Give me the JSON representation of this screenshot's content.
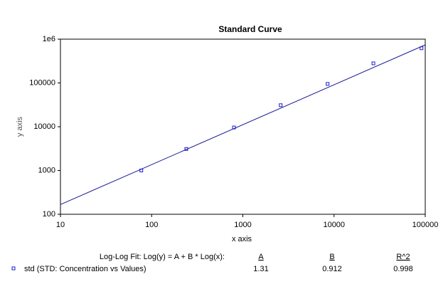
{
  "chart_data": {
    "type": "scatter",
    "title": "Standard Curve",
    "x_label": "x axis",
    "y_label": "y axis",
    "log_x": true,
    "log_y": true,
    "xlim": [
      10,
      100000
    ],
    "xticks": [
      10,
      100,
      1000,
      10000,
      100000
    ],
    "ylim": [
      100,
      1000000
    ],
    "yticks": [
      100,
      1000,
      10000,
      100000,
      {
        "value": 1000000,
        "label": "1e6"
      }
    ],
    "series": [
      {
        "name": "std (STD: Concentration vs Values)",
        "color": "#1a1acc",
        "x": [
          77,
          240,
          800,
          2600,
          8500,
          27000,
          91000
        ],
        "values": [
          1000,
          3100,
          9600,
          31000,
          95000,
          280000,
          620000
        ]
      }
    ],
    "fit": {
      "label": "Log-Log Fit: Log(y) = A + B * Log(x):",
      "color": "#1a1a99",
      "headers": [
        "A",
        "B",
        "R^2"
      ],
      "values": [
        1.31,
        0.912,
        0.998
      ]
    }
  }
}
